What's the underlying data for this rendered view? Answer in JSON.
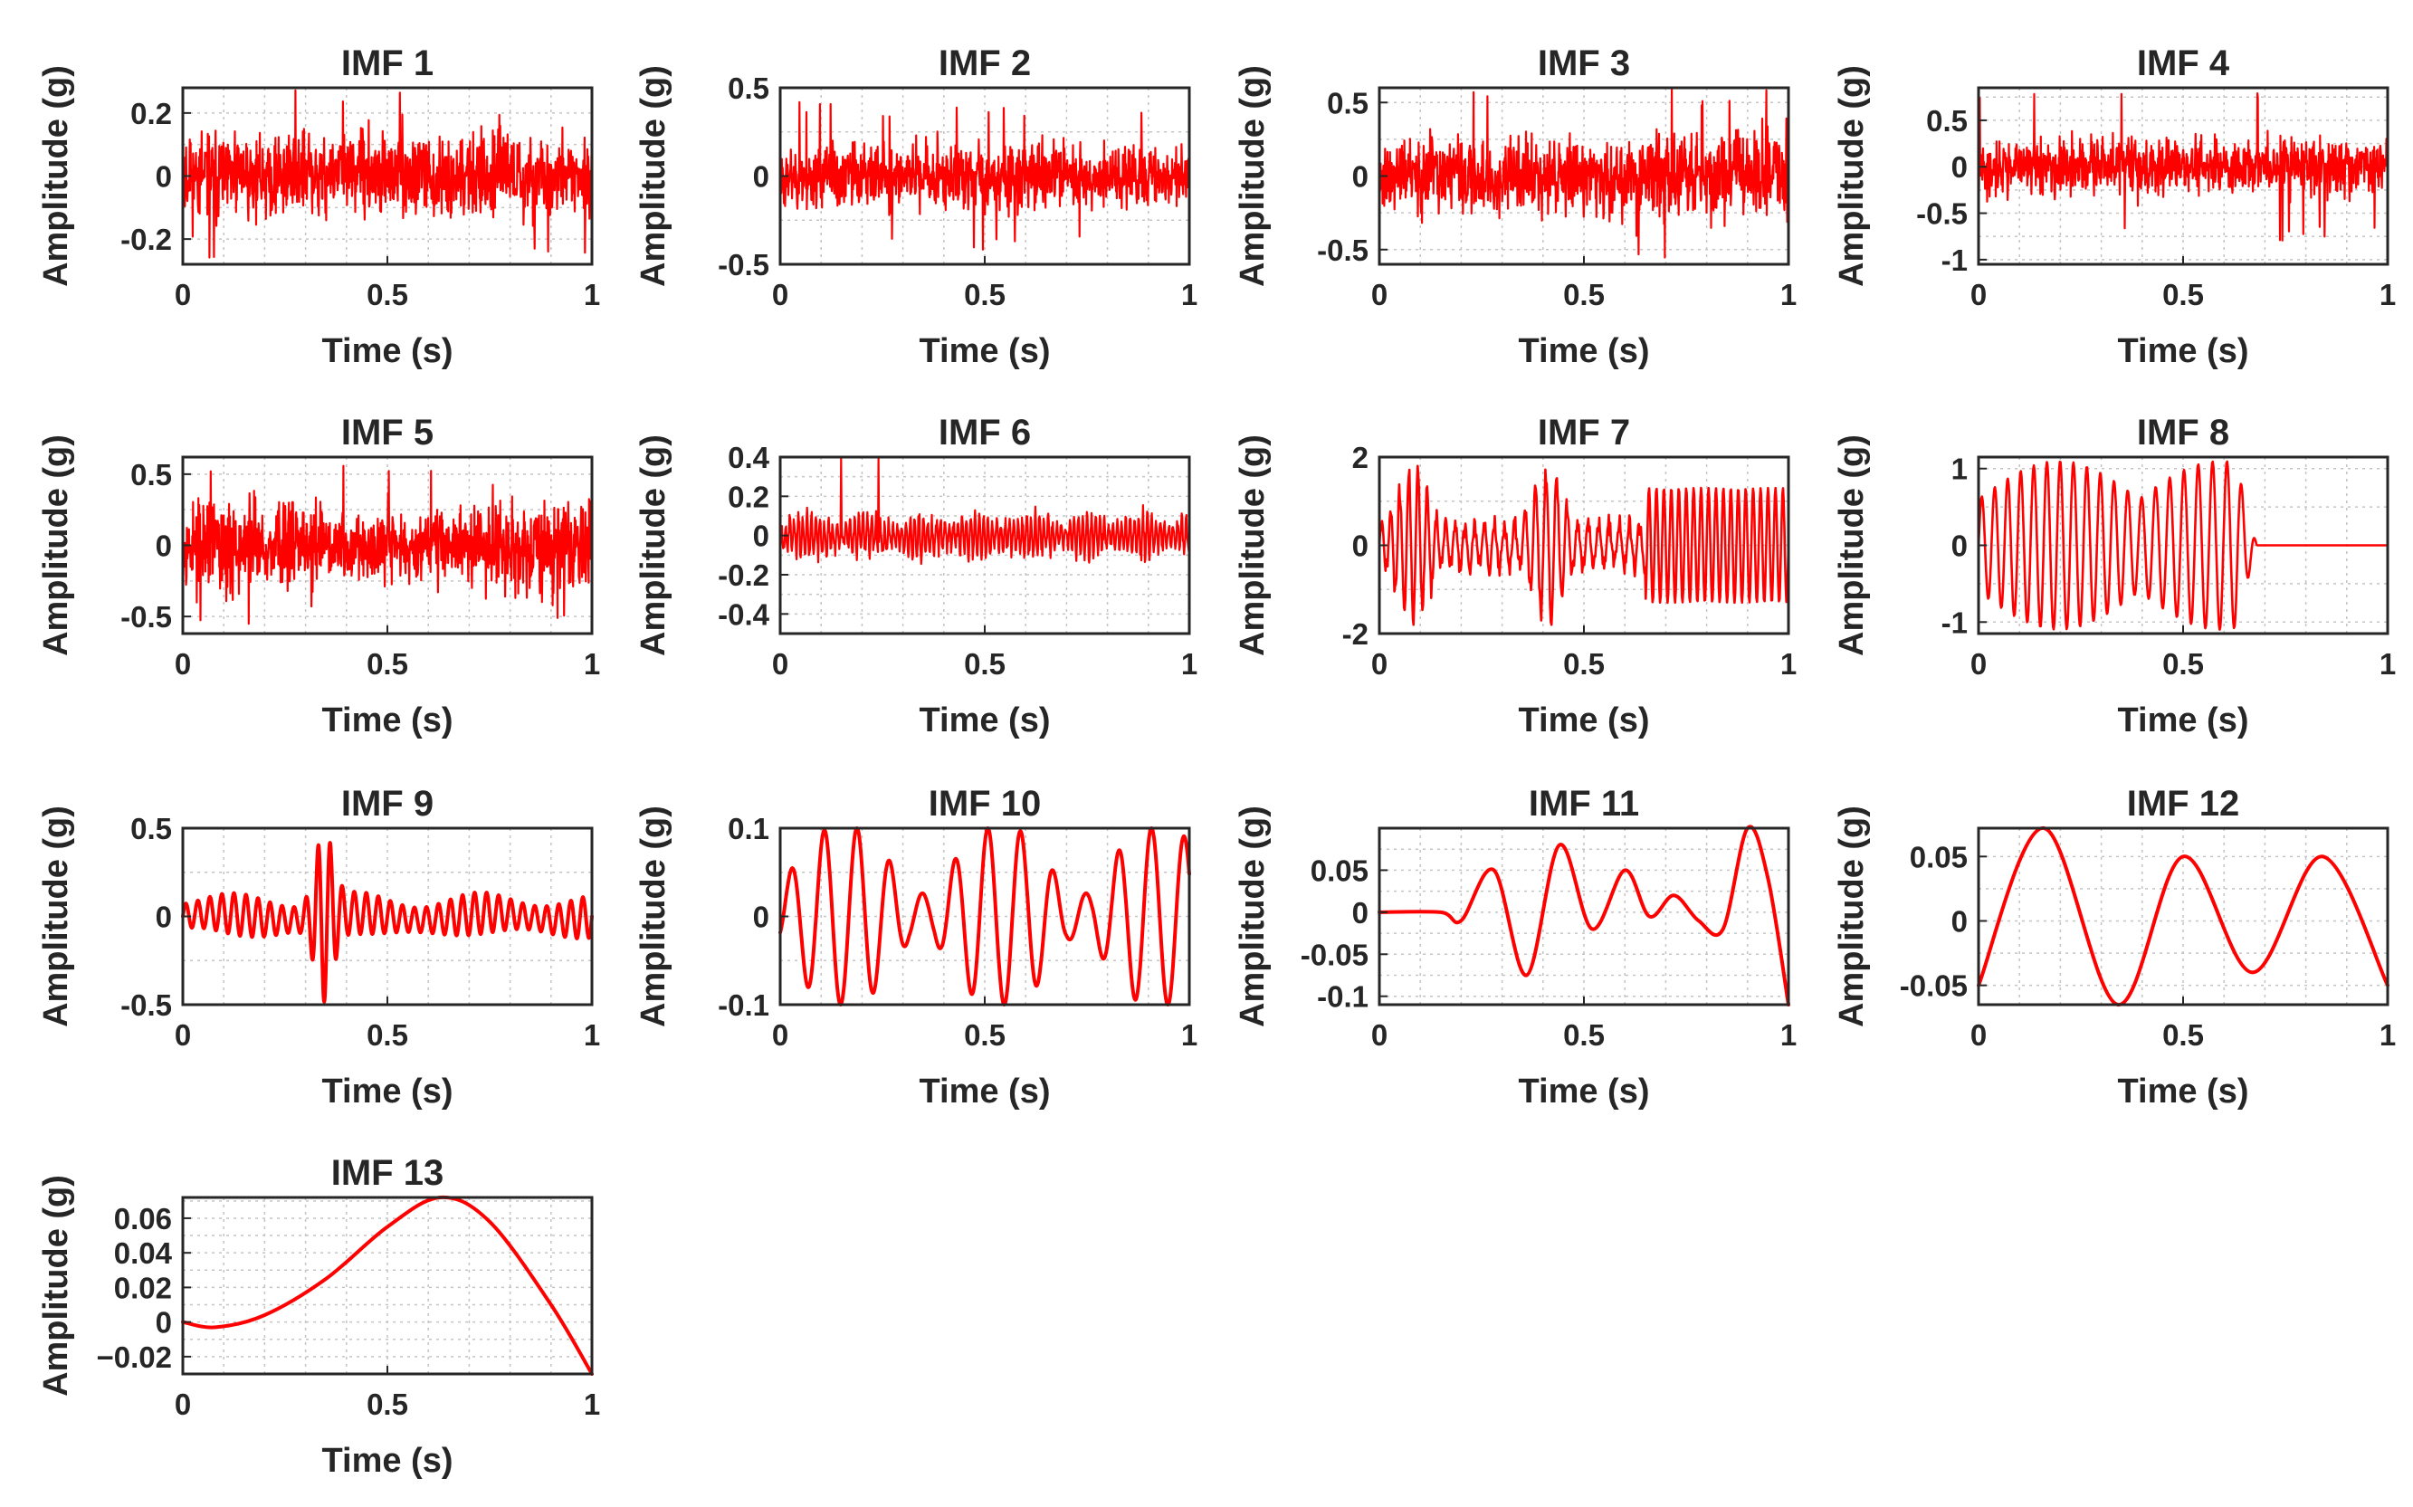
{
  "colors": {
    "trace": "#ff0000",
    "axis": "#262626",
    "grid": "#c4c4c4",
    "background": "#ffffff"
  },
  "chart_data": [
    {
      "type": "line",
      "title": "IMF 1",
      "xlabel": "Time (s)",
      "ylabel": "Amplitude (g)",
      "xlim": [
        0,
        1
      ],
      "ylim": [
        -0.28,
        0.28
      ],
      "xticks": [
        0,
        0.5,
        1
      ],
      "xtick_labels": [
        "0",
        "0.5",
        "1"
      ],
      "yticks": [
        -0.2,
        0,
        0.2
      ],
      "ytick_labels": [
        "-0.2",
        "0",
        "0.2"
      ],
      "grid": true,
      "series": [
        {
          "name": "IMF 1",
          "signal": "broadband noise",
          "amplitude": 0.09,
          "peak": 0.28,
          "samples": 1000
        }
      ]
    },
    {
      "type": "line",
      "title": "IMF 2",
      "xlabel": "Time (s)",
      "ylabel": "Amplitude (g)",
      "xlim": [
        0,
        1
      ],
      "ylim": [
        -0.5,
        0.5
      ],
      "xticks": [
        0,
        0.5,
        1
      ],
      "xtick_labels": [
        "0",
        "0.5",
        "1"
      ],
      "yticks": [
        -0.5,
        0,
        0.5
      ],
      "ytick_labels": [
        "-0.5",
        "0",
        "0.5"
      ],
      "grid": true,
      "series": [
        {
          "name": "IMF 2",
          "signal": "broadband noise",
          "amplitude": 0.13,
          "peak": 0.42,
          "samples": 1000
        }
      ]
    },
    {
      "type": "line",
      "title": "IMF 3",
      "xlabel": "Time (s)",
      "ylabel": "Amplitude (g)",
      "xlim": [
        0,
        1
      ],
      "ylim": [
        -0.6,
        0.6
      ],
      "xticks": [
        0,
        0.5,
        1
      ],
      "xtick_labels": [
        "0",
        "0.5",
        "1"
      ],
      "yticks": [
        -0.5,
        0,
        0.5
      ],
      "ytick_labels": [
        "-0.5",
        "0",
        "0.5"
      ],
      "grid": true,
      "series": [
        {
          "name": "IMF 3",
          "signal": "broadband noise",
          "amplitude": 0.19,
          "peak": 0.6,
          "samples": 1000
        }
      ]
    },
    {
      "type": "line",
      "title": "IMF 4",
      "xlabel": "Time (s)",
      "ylabel": "Amplitude (g)",
      "xlim": [
        0,
        1
      ],
      "ylim": [
        -1.05,
        0.85
      ],
      "xticks": [
        0,
        0.5,
        1
      ],
      "xtick_labels": [
        "0",
        "0.5",
        "1"
      ],
      "yticks": [
        -1,
        -0.5,
        0,
        0.5
      ],
      "ytick_labels": [
        "-1",
        "-0.5",
        "0",
        "0.5"
      ],
      "grid": true,
      "series": [
        {
          "name": "IMF 4",
          "signal": "broadband noise",
          "amplitude": 0.2,
          "peak": 0.8,
          "samples": 1000
        }
      ]
    },
    {
      "type": "line",
      "title": "IMF 5",
      "xlabel": "Time (s)",
      "ylabel": "Amplitude (g)",
      "xlim": [
        0,
        1
      ],
      "ylim": [
        -0.62,
        0.62
      ],
      "xticks": [
        0,
        0.5,
        1
      ],
      "xtick_labels": [
        "0",
        "0.5",
        "1"
      ],
      "yticks": [
        -0.5,
        0,
        0.5
      ],
      "ytick_labels": [
        "-0.5",
        "0",
        "0.5"
      ],
      "grid": true,
      "series": [
        {
          "name": "IMF 5",
          "signal": "broadband noise",
          "amplitude": 0.22,
          "peak": 0.6,
          "samples": 1000
        }
      ]
    },
    {
      "type": "line",
      "title": "IMF 6",
      "xlabel": "Time (s)",
      "ylabel": "Amplitude (g)",
      "xlim": [
        0,
        1
      ],
      "ylim": [
        -0.5,
        0.4
      ],
      "xticks": [
        0,
        0.5,
        1
      ],
      "xtick_labels": [
        "0",
        "0.5",
        "1"
      ],
      "yticks": [
        -0.4,
        -0.2,
        0,
        0.2,
        0.4
      ],
      "ytick_labels": [
        "-0.4",
        "-0.2",
        "0",
        "0.2",
        "0.4"
      ],
      "grid": true,
      "series": [
        {
          "name": "IMF 6",
          "signal": "oscillatory noise",
          "amplitude": 0.1,
          "peak": 0.4,
          "samples": 700
        }
      ]
    },
    {
      "type": "line",
      "title": "IMF 7",
      "xlabel": "Time (s)",
      "ylabel": "Amplitude (g)",
      "xlim": [
        0,
        1
      ],
      "ylim": [
        -2,
        2
      ],
      "xticks": [
        0,
        0.5,
        1
      ],
      "xtick_labels": [
        "0",
        "0.5",
        "1"
      ],
      "yticks": [
        -2,
        0,
        2
      ],
      "ytick_labels": [
        "-2",
        "0",
        "2"
      ],
      "grid": true,
      "series": [
        {
          "name": "IMF 7",
          "signal": "bursts then steady oscillation after t=0.65 s",
          "amplitude": 1.3,
          "peak": 1.8,
          "samples": 600
        }
      ]
    },
    {
      "type": "line",
      "title": "IMF 8",
      "xlabel": "Time (s)",
      "ylabel": "Amplitude (g)",
      "xlim": [
        0,
        1
      ],
      "ylim": [
        -1.15,
        1.15
      ],
      "xticks": [
        0,
        0.5,
        1
      ],
      "xtick_labels": [
        "0",
        "0.5",
        "1"
      ],
      "yticks": [
        -1,
        0,
        1
      ],
      "ytick_labels": [
        "-1",
        "0",
        "1"
      ],
      "grid": true,
      "series": [
        {
          "name": "IMF 8",
          "signal": "oscillation decaying to 0 at t=0.68 s",
          "amplitude": 1.1,
          "peak": 1.15,
          "samples": 600
        }
      ]
    },
    {
      "type": "line",
      "title": "IMF 9",
      "xlabel": "Time (s)",
      "ylabel": "Amplitude (g)",
      "xlim": [
        0,
        1
      ],
      "ylim": [
        -0.5,
        0.5
      ],
      "xticks": [
        0,
        0.5,
        1
      ],
      "xtick_labels": [
        "0",
        "0.5",
        "1"
      ],
      "yticks": [
        -0.5,
        0,
        0.5
      ],
      "ytick_labels": [
        "-0.5",
        "0",
        "0.5"
      ],
      "grid": true,
      "series": [
        {
          "name": "IMF 9",
          "signal": "oscillation with burst near t=0.34 s",
          "amplitude": 0.1,
          "peak": 0.4,
          "samples": 600
        }
      ]
    },
    {
      "type": "line",
      "title": "IMF 10",
      "xlabel": "Time (s)",
      "ylabel": "Amplitude (g)",
      "xlim": [
        0,
        1
      ],
      "ylim": [
        -0.1,
        0.1
      ],
      "xticks": [
        0,
        0.5,
        1
      ],
      "xtick_labels": [
        "0",
        "0.5",
        "1"
      ],
      "yticks": [
        -0.1,
        0,
        0.1
      ],
      "ytick_labels": [
        "-0.1",
        "0",
        "0.1"
      ],
      "grid": true,
      "series": [
        {
          "name": "IMF 10",
          "signal": "amplitude-modulated oscillation",
          "amplitude": 0.1,
          "peak": 0.1,
          "samples": 500
        }
      ]
    },
    {
      "type": "line",
      "title": "IMF 11",
      "xlabel": "Time (s)",
      "ylabel": "Amplitude (g)",
      "xlim": [
        0,
        1
      ],
      "ylim": [
        -0.11,
        0.1
      ],
      "xticks": [
        0,
        0.5,
        1
      ],
      "xtick_labels": [
        "0",
        "0.5",
        "1"
      ],
      "yticks": [
        -0.1,
        -0.05,
        0,
        0.05
      ],
      "ytick_labels": [
        "-0.1",
        "-0.05",
        "0",
        "0.05"
      ],
      "grid": true,
      "series": [
        {
          "name": "IMF 11",
          "x": [
            0,
            0.15,
            0.2,
            0.28,
            0.36,
            0.44,
            0.52,
            0.6,
            0.66,
            0.72,
            0.78,
            0.84,
            0.9,
            0.95,
            1
          ],
          "y": [
            0,
            0,
            -0.01,
            0.05,
            -0.075,
            0.08,
            -0.02,
            0.05,
            -0.005,
            0.02,
            -0.01,
            -0.02,
            0.1,
            0.04,
            -0.11
          ]
        }
      ]
    },
    {
      "type": "line",
      "title": "IMF 12",
      "xlabel": "Time (s)",
      "ylabel": "Amplitude (g)",
      "xlim": [
        0,
        1
      ],
      "ylim": [
        -0.065,
        0.072
      ],
      "xticks": [
        0,
        0.5,
        1
      ],
      "xtick_labels": [
        "0",
        "0.5",
        "1"
      ],
      "yticks": [
        -0.05,
        0,
        0.05
      ],
      "ytick_labels": [
        "-0.05",
        "0",
        "0.05"
      ],
      "grid": true,
      "series": [
        {
          "name": "IMF 12",
          "x": [
            0,
            0.16,
            0.34,
            0.5,
            0.67,
            0.84,
            1
          ],
          "y": [
            -0.05,
            0.072,
            -0.065,
            0.05,
            -0.04,
            0.05,
            -0.05
          ]
        }
      ]
    },
    {
      "type": "line",
      "title": "IMF 13",
      "xlabel": "Time (s)",
      "ylabel": "Amplitude (g)",
      "xlim": [
        0,
        1
      ],
      "ylim": [
        -0.03,
        0.072
      ],
      "xticks": [
        0,
        0.5,
        1
      ],
      "xtick_labels": [
        "0",
        "0.5",
        "1"
      ],
      "yticks": [
        -0.02,
        0,
        0.02,
        0.04,
        0.06
      ],
      "ytick_labels": [
        "−0.02",
        "0",
        "0.02",
        "0.04",
        "0.06"
      ],
      "grid": true,
      "series": [
        {
          "name": "IMF 13",
          "x": [
            0,
            0.08,
            0.2,
            0.35,
            0.5,
            0.63,
            0.75,
            0.9,
            1
          ],
          "y": [
            0,
            -0.003,
            0.004,
            0.025,
            0.055,
            0.072,
            0.058,
            0.01,
            -0.03
          ]
        }
      ]
    }
  ]
}
